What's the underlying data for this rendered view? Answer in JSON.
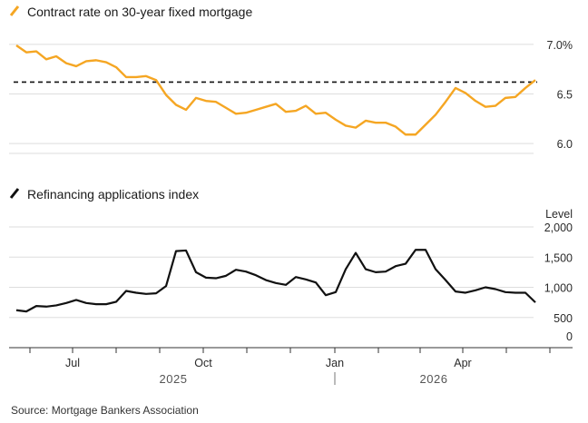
{
  "colors": {
    "rate": "#f5a623",
    "refi": "#111111",
    "grid": "#dddddd",
    "axis": "#333333"
  },
  "chart_data": [
    {
      "type": "line",
      "legend": "Contract rate on 30-year fixed mortgage",
      "y_ticks": [
        {
          "value": 6.0,
          "label": "6.0"
        },
        {
          "value": 6.5,
          "label": "6.5"
        },
        {
          "value": 7.0,
          "label": "7.0%"
        }
      ],
      "ylim": [
        5.9,
        7.1
      ],
      "reference_line": {
        "value": 6.62,
        "style": "dashed"
      },
      "series": [
        {
          "values": [
            6.99,
            6.92,
            6.93,
            6.85,
            6.88,
            6.81,
            6.78,
            6.83,
            6.84,
            6.82,
            6.77,
            6.67,
            6.67,
            6.68,
            6.64,
            6.49,
            6.39,
            6.34,
            6.46,
            6.43,
            6.42,
            6.36,
            6.3,
            6.31,
            6.34,
            6.37,
            6.4,
            6.32,
            6.33,
            6.38,
            6.3,
            6.31,
            6.24,
            6.18,
            6.16,
            6.23,
            6.21,
            6.21,
            6.17,
            6.09,
            6.09,
            6.19,
            6.29,
            6.42,
            6.56,
            6.51,
            6.43,
            6.37,
            6.38,
            6.46,
            6.47,
            6.56,
            6.64
          ]
        }
      ]
    },
    {
      "type": "line",
      "legend": "Refinancing applications index",
      "y_title": "Level",
      "y_ticks": [
        {
          "value": 0,
          "label": "0"
        },
        {
          "value": 500,
          "label": "500"
        },
        {
          "value": 1000,
          "label": "1,000"
        },
        {
          "value": 1500,
          "label": "1,500"
        },
        {
          "value": 2000,
          "label": "2,000"
        }
      ],
      "ylim": [
        0,
        2000
      ],
      "series": [
        {
          "values": [
            620,
            600,
            690,
            680,
            700,
            740,
            790,
            740,
            720,
            720,
            760,
            940,
            910,
            890,
            900,
            1020,
            1600,
            1610,
            1250,
            1160,
            1150,
            1190,
            1290,
            1260,
            1200,
            1120,
            1070,
            1040,
            1170,
            1130,
            1080,
            870,
            920,
            1300,
            1570,
            1300,
            1250,
            1260,
            1350,
            1390,
            1620,
            1620,
            1300,
            1120,
            930,
            910,
            950,
            1000,
            970,
            920,
            910,
            910,
            750
          ]
        }
      ]
    }
  ],
  "x_axis": {
    "month_labels": [
      "Jul",
      "Oct",
      "Jan",
      "Apr"
    ],
    "year_labels": [
      "2025",
      "2026"
    ]
  },
  "source": "Source: Mortgage Bankers Association"
}
